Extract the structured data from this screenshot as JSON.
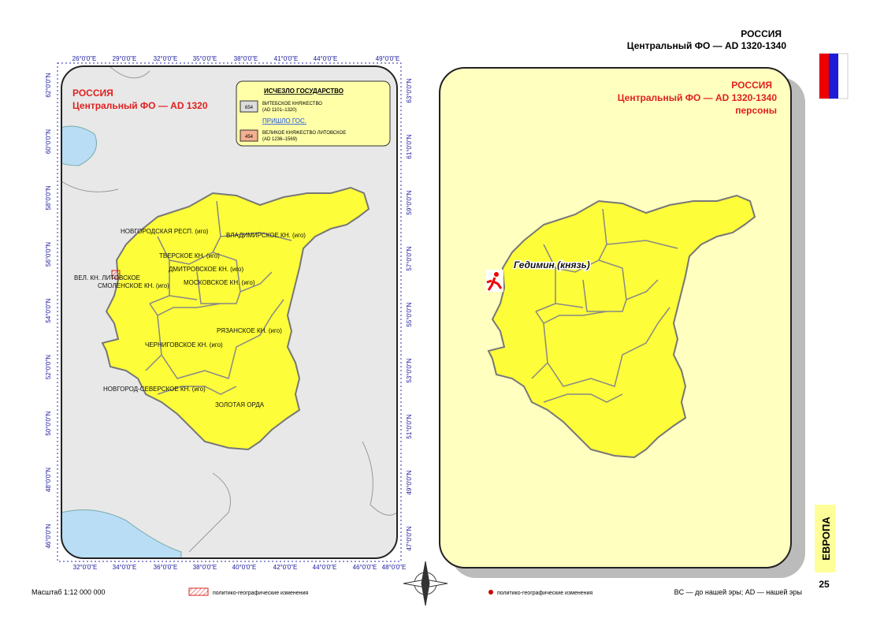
{
  "header": {
    "country": "РОССИЯ",
    "subtitle": "Центральный ФО — AD 1320-1340"
  },
  "left_map": {
    "title": "РОССИЯ",
    "subtitle": "Центральный ФО — AD 1320",
    "top_axis": [
      "26°0'0\"E",
      "29°0'0\"E",
      "32°0'0\"E",
      "35°0'0\"E",
      "38°0'0\"E",
      "41°0'0\"E",
      "44°0'0\"E",
      "49°0'0\"E"
    ],
    "bottom_axis": [
      "32°0'0\"E",
      "34°0'0\"E",
      "36°0'0\"E",
      "38°0'0\"E",
      "40°0'0\"E",
      "42°0'0\"E",
      "44°0'0\"E",
      "46°0'0\"E",
      "48°0'0\"E"
    ],
    "left_axis": [
      "62°0'0\"N",
      "60°0'0\"N",
      "58°0'0\"N",
      "56°0'0\"N",
      "54°0'0\"N",
      "52°0'0\"N",
      "50°0'0\"N",
      "48°0'0\"N",
      "46°0'0\"N"
    ],
    "right_axis": [
      "63°0'0\"N",
      "61°0'0\"N",
      "59°0'0\"N",
      "57°0'0\"N",
      "55°0'0\"N",
      "53°0'0\"N",
      "51°0'0\"N",
      "49°0'0\"N",
      "47°0'0\"N"
    ],
    "legend": {
      "gone_heading": "ИСЧЕЗЛО ГОСУДАРСТВО",
      "gone_code": "654",
      "gone_name": "ВИТЕБСКОЕ КНЯЖЕСТВО",
      "gone_dates": "(AD 1101–1320)",
      "came_heading": "ПРИШЛО ГОС.",
      "came_code": "454",
      "came_name": "ВЕЛИКОЕ КНЯЖЕСТВО ЛИТОВСКОЕ",
      "came_dates": "(AD 1236–1569)"
    },
    "regions": [
      "НОВГОРОДСКАЯ РЕСП. (иго)",
      "ВЛАДИМИРСКОЕ КН. (иго)",
      "ТВЕРСКОЕ КН. (иго)",
      "ДМИТРОВСКОЕ КН. (иго)",
      "МОСКОВСКОЕ КН. (иго)",
      "ВЕЛ. КН. ЛИТОВСКОЕ",
      "СМОЛЕНСКОЕ КН. (иго)",
      "РЯЗАНСКОЕ КН. (иго)",
      "ЧЕРНИГОВСКОЕ КН. (иго)",
      "НОВГОРОД-СЕВЕРСКОЕ КН. (иго)",
      "ЗОЛОТАЯ ОРДА"
    ]
  },
  "right_map": {
    "title": "РОССИЯ",
    "subtitle": "Центральный ФО — AD 1320-1340",
    "theme": "персоны",
    "person": "Гедимин (князь)"
  },
  "footer": {
    "scale": "Масштаб 1:12 000 000",
    "legend_hatch": "политико-географические изменения",
    "legend_dot": "политико-географические изменения",
    "era_note": "BC — до нашей эры; AD — нашей эры"
  },
  "side_tab": {
    "section": "ЕВРОПА",
    "page": "25"
  }
}
